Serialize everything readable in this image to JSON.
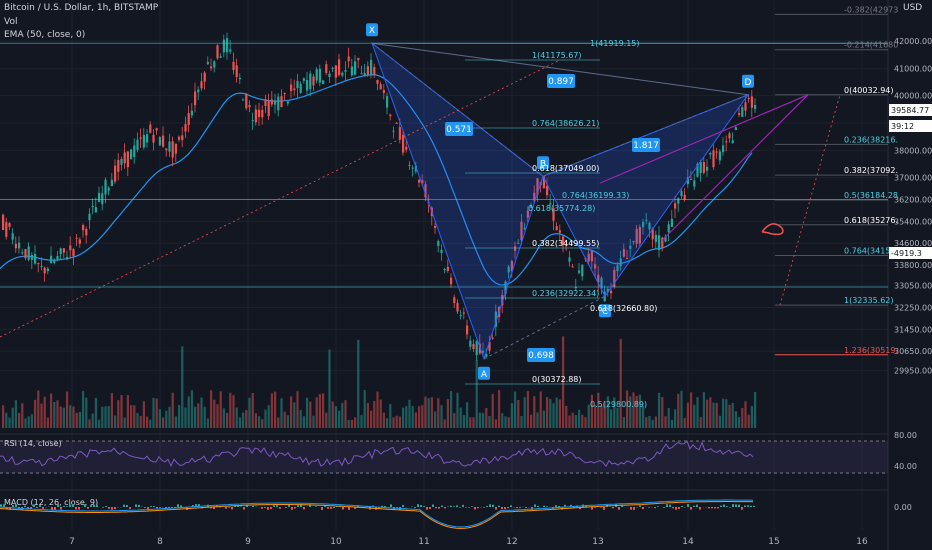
{
  "header": {
    "symbol": "Bitcoin / U.S. Dollar, 1h, BITSTAMP",
    "vol": "Vol",
    "ema": "EMA (50, close, 0)",
    "currency": "USD"
  },
  "chart_data": {
    "type": "candlestick",
    "price_ticks": [
      "42000.00",
      "41000.00",
      "40000.00",
      "39000.00",
      "38000.00",
      "37000.00",
      "36200.00",
      "35400.00",
      "34600.00",
      "33800.00",
      "33050.00",
      "32250.00",
      "31450.00",
      "30650.00",
      "29950.00"
    ],
    "x_ticks": [
      "7",
      "8",
      "9",
      "10",
      "11",
      "12",
      "13",
      "14",
      "15",
      "16"
    ],
    "price_badges": [
      {
        "text": "39584.77",
        "color": "#ffffff",
        "bg": "#ffffff",
        "fg": "#131722"
      },
      {
        "text": "39:12",
        "color": "#ffffff",
        "bg": "#ffffff",
        "fg": "#131722"
      },
      {
        "text": "-4919.3",
        "color": "#ffffff",
        "bg": "#ffffff",
        "fg": "#131722"
      }
    ],
    "patterns": {
      "points": [
        {
          "label": "X",
          "price": 41919.15
        },
        {
          "label": "A",
          "price": 30372.88
        },
        {
          "label": "B",
          "price": 37049.0
        },
        {
          "label": "C",
          "price": 32660.8
        },
        {
          "label": "D",
          "price": 40032.94
        }
      ],
      "ratios": [
        "0.571",
        "0.897",
        "0.698",
        "1.817"
      ]
    },
    "fib_left": [
      {
        "ratio": "1",
        "price": "41175.67",
        "text": "1(41175.67)"
      },
      {
        "ratio": "0.764",
        "price": "38626.21",
        "text": "0.764(38626.21)"
      },
      {
        "ratio": "0.618",
        "price": "37049.00",
        "text": "0.618(37049.00)"
      },
      {
        "ratio": "0.382",
        "price": "34499.55",
        "text": "0.382(34499.55)"
      },
      {
        "ratio": "0.236",
        "price": "32922.34",
        "text": "0.236(32922.34)"
      },
      {
        "ratio": "0",
        "price": "30372.88",
        "text": "0(30372.88)"
      }
    ],
    "fib_top": {
      "text": "1(41919.15)",
      "price": 41919.15
    },
    "fib_bc": [
      {
        "text": "0.764(36199.33)"
      },
      {
        "text": "0.618(35774.28)"
      },
      {
        "text": "0.5(29800.89)"
      },
      {
        "text": "0.618(32660.80)"
      }
    ],
    "fib_right": [
      {
        "text": "-0.382(42973",
        "price": 42973
      },
      {
        "text": "-0.214(41680",
        "price": 41680
      },
      {
        "text": "0(40032.94)",
        "price": 40032.94
      },
      {
        "text": "0.236(38216.",
        "price": 38216
      },
      {
        "text": "0.382(37092.",
        "price": 37092
      },
      {
        "text": "0.5(36184.28",
        "price": 36184.28
      },
      {
        "text": "0.618(35276.",
        "price": 35276
      },
      {
        "text": "0.764(34152.",
        "price": 34152
      },
      {
        "text": "1(32335.62)",
        "price": 32335.62
      },
      {
        "text": "1.236(30519.",
        "price": 30519
      }
    ],
    "rsi": {
      "label": "RSI (14, close)",
      "ticks": [
        "80.00",
        "40.00"
      ]
    },
    "macd": {
      "label": "MACD (12, 26, close, 9)",
      "ticks": [
        "0.00"
      ]
    }
  },
  "colors": {
    "bg": "#131722",
    "up": "#26a69a",
    "down": "#ef5350",
    "ema": "#2196f3",
    "pattern": "#2962ff",
    "fib": "#4dd0e1",
    "purple": "#9c27b0",
    "rsi": "#7e57c2"
  }
}
